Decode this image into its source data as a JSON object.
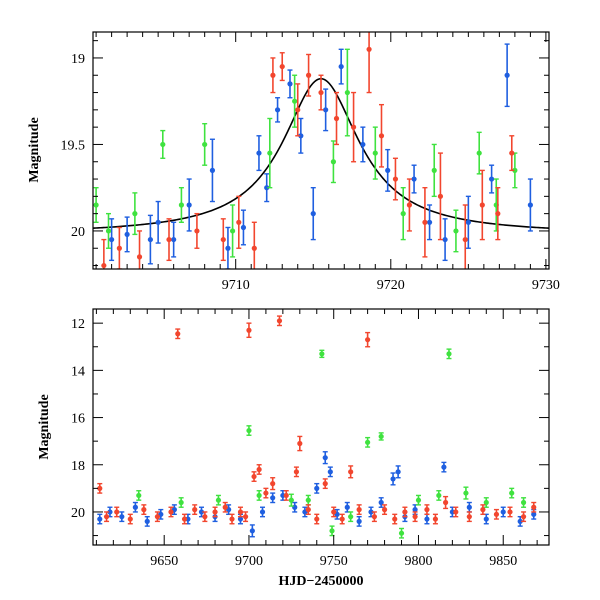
{
  "colors": {
    "blue": "#1f5fe0",
    "green": "#3fe23f",
    "red": "#f2462e",
    "fit": "#000000"
  },
  "chart_data": [
    {
      "type": "scatter",
      "title": "",
      "xlabel": "",
      "ylabel": "Magnitude",
      "xlim": [
        9700.8,
        9730.2
      ],
      "ylim": [
        20.22,
        18.85
      ],
      "y_inverted": true,
      "xticks": [
        9710,
        9720,
        9730
      ],
      "yticks": [
        19,
        19.5,
        20
      ],
      "ytick_labels": [
        "19",
        "19.5",
        "20"
      ],
      "fit_curve": {
        "model": "lorentzian",
        "t0": 9715.5,
        "baseline": 20.02,
        "peak": 19.12,
        "width": 3.0
      },
      "series": [
        {
          "name": "blue",
          "color": "blue",
          "points": [
            [
              9702,
              20.05,
              0.12
            ],
            [
              9703,
              20.02,
              0.1
            ],
            [
              9704.5,
              20.05,
              0.14
            ],
            [
              9705,
              19.95,
              0.12
            ],
            [
              9706,
              20.05,
              0.1
            ],
            [
              9707,
              19.85,
              0.15
            ],
            [
              9708.5,
              19.65,
              0.18
            ],
            [
              9709.5,
              20.1,
              0.12
            ],
            [
              9710.5,
              19.98,
              0.1
            ],
            [
              9711.5,
              19.55,
              0.1
            ],
            [
              9712,
              19.75,
              0.08
            ],
            [
              9712.7,
              19.3,
              0.07
            ],
            [
              9713.5,
              19.15,
              0.08
            ],
            [
              9714.2,
              19.45,
              0.1
            ],
            [
              9715,
              19.9,
              0.15
            ],
            [
              9715.8,
              19.3,
              0.12
            ],
            [
              9716.8,
              19.05,
              0.1
            ],
            [
              9718.2,
              19.5,
              0.1
            ],
            [
              9719.8,
              19.65,
              0.12
            ],
            [
              9721.5,
              19.7,
              0.08
            ],
            [
              9722.5,
              19.95,
              0.1
            ],
            [
              9723.5,
              20.05,
              0.12
            ],
            [
              9725,
              19.95,
              0.15
            ],
            [
              9726.5,
              19.7,
              0.08
            ],
            [
              9727.5,
              19.1,
              0.18
            ],
            [
              9729,
              19.85,
              0.15
            ]
          ]
        },
        {
          "name": "green",
          "color": "green",
          "points": [
            [
              9701,
              19.85,
              0.1
            ],
            [
              9701.8,
              20.0,
              0.1
            ],
            [
              9703.5,
              19.9,
              0.12
            ],
            [
              9705.3,
              19.5,
              0.08
            ],
            [
              9706.5,
              19.85,
              0.1
            ],
            [
              9708,
              19.5,
              0.12
            ],
            [
              9709.8,
              20.0,
              0.15
            ],
            [
              9712.2,
              19.55,
              0.2
            ],
            [
              9713.8,
              19.25,
              0.15
            ],
            [
              9716.3,
              19.6,
              0.12
            ],
            [
              9717.2,
              19.2,
              0.25
            ],
            [
              9719,
              19.55,
              0.15
            ],
            [
              9720.8,
              19.9,
              0.15
            ],
            [
              9722.8,
              19.65,
              0.15
            ],
            [
              9724.2,
              20.0,
              0.12
            ],
            [
              9725.7,
              19.55,
              0.12
            ],
            [
              9726.8,
              19.85,
              0.15
            ],
            [
              9728,
              19.65,
              0.1
            ]
          ]
        },
        {
          "name": "red",
          "color": "red",
          "points": [
            [
              9701.5,
              20.2,
              0.15
            ],
            [
              9702.5,
              20.1,
              0.12
            ],
            [
              9703.8,
              20.15,
              0.15
            ],
            [
              9705.7,
              20.05,
              0.12
            ],
            [
              9707.5,
              20.0,
              0.1
            ],
            [
              9709.2,
              20.05,
              0.12
            ],
            [
              9710.2,
              19.95,
              0.15
            ],
            [
              9711.2,
              20.1,
              0.15
            ],
            [
              9712.4,
              19.1,
              0.1
            ],
            [
              9713,
              19.05,
              0.08
            ],
            [
              9714,
              19.3,
              0.15
            ],
            [
              9714.7,
              19.1,
              0.12
            ],
            [
              9715.5,
              19.2,
              0.1
            ],
            [
              9716.5,
              19.35,
              0.15
            ],
            [
              9717.6,
              19.4,
              0.2
            ],
            [
              9718.6,
              18.95,
              0.25
            ],
            [
              9719.4,
              19.45,
              0.18
            ],
            [
              9720.3,
              19.7,
              0.12
            ],
            [
              9721.2,
              19.85,
              0.15
            ],
            [
              9722.2,
              19.95,
              0.2
            ],
            [
              9723.2,
              19.8,
              0.25
            ],
            [
              9724.8,
              20.05,
              0.2
            ],
            [
              9725.9,
              19.85,
              0.2
            ],
            [
              9726.9,
              19.9,
              0.15
            ],
            [
              9727.8,
              19.55,
              0.1
            ]
          ]
        }
      ]
    },
    {
      "type": "scatter",
      "title": "",
      "xlabel": "HJD−2450000",
      "ylabel": "Magnitude",
      "xlim": [
        9608,
        9877
      ],
      "ylim": [
        21.4,
        11.4
      ],
      "y_inverted": true,
      "xticks": [
        9650,
        9700,
        9750,
        9800,
        9850
      ],
      "yticks": [
        12,
        14,
        16,
        18,
        20
      ],
      "ytick_labels": [
        "12",
        "14",
        "16",
        "18",
        "20"
      ],
      "series": [
        {
          "name": "blue",
          "color": "blue",
          "points": [
            [
              9612,
              20.3,
              0.2
            ],
            [
              9618,
              20.0,
              0.2
            ],
            [
              9625,
              20.2,
              0.2
            ],
            [
              9633,
              19.8,
              0.2
            ],
            [
              9640,
              20.4,
              0.2
            ],
            [
              9648,
              20.1,
              0.2
            ],
            [
              9656,
              19.9,
              0.2
            ],
            [
              9664,
              20.3,
              0.2
            ],
            [
              9672,
              20.0,
              0.2
            ],
            [
              9680,
              20.2,
              0.2
            ],
            [
              9688,
              19.9,
              0.2
            ],
            [
              9695,
              20.3,
              0.2
            ],
            [
              9702,
              20.8,
              0.25
            ],
            [
              9708,
              20.0,
              0.2
            ],
            [
              9714,
              19.4,
              0.2
            ],
            [
              9720,
              19.3,
              0.2
            ],
            [
              9727,
              19.8,
              0.2
            ],
            [
              9733,
              20.0,
              0.2
            ],
            [
              9740,
              19.0,
              0.2
            ],
            [
              9745,
              17.7,
              0.25
            ],
            [
              9748,
              18.3,
              0.2
            ],
            [
              9752,
              20.1,
              0.2
            ],
            [
              9758,
              19.8,
              0.2
            ],
            [
              9765,
              20.4,
              0.2
            ],
            [
              9772,
              20.0,
              0.2
            ],
            [
              9778,
              19.6,
              0.2
            ],
            [
              9785,
              18.6,
              0.25
            ],
            [
              9788,
              18.3,
              0.25
            ],
            [
              9792,
              20.2,
              0.2
            ],
            [
              9798,
              19.9,
              0.2
            ],
            [
              9805,
              20.3,
              0.2
            ],
            [
              9815,
              18.1,
              0.2
            ],
            [
              9820,
              20.0,
              0.2
            ],
            [
              9830,
              19.8,
              0.2
            ],
            [
              9840,
              20.3,
              0.2
            ],
            [
              9850,
              20.0,
              0.2
            ],
            [
              9860,
              20.4,
              0.2
            ],
            [
              9868,
              20.1,
              0.2
            ]
          ]
        },
        {
          "name": "green",
          "color": "green",
          "points": [
            [
              9635,
              19.3,
              0.2
            ],
            [
              9660,
              19.6,
              0.2
            ],
            [
              9682,
              19.5,
              0.2
            ],
            [
              9700,
              16.55,
              0.2
            ],
            [
              9706,
              19.3,
              0.2
            ],
            [
              9725,
              19.5,
              0.25
            ],
            [
              9735,
              19.5,
              0.2
            ],
            [
              9743,
              13.3,
              0.15
            ],
            [
              9749,
              20.8,
              0.2
            ],
            [
              9760,
              20.2,
              0.2
            ],
            [
              9770,
              17.05,
              0.2
            ],
            [
              9778,
              16.8,
              0.15
            ],
            [
              9790,
              20.9,
              0.2
            ],
            [
              9800,
              19.5,
              0.2
            ],
            [
              9812,
              19.3,
              0.2
            ],
            [
              9818,
              13.3,
              0.2
            ],
            [
              9828,
              19.2,
              0.25
            ],
            [
              9840,
              19.6,
              0.2
            ],
            [
              9855,
              19.2,
              0.2
            ],
            [
              9862,
              19.6,
              0.2
            ]
          ]
        },
        {
          "name": "red",
          "color": "red",
          "points": [
            [
              9612,
              19.0,
              0.2
            ],
            [
              9616,
              20.2,
              0.2
            ],
            [
              9622,
              20.0,
              0.2
            ],
            [
              9630,
              20.3,
              0.2
            ],
            [
              9638,
              19.9,
              0.2
            ],
            [
              9646,
              20.2,
              0.2
            ],
            [
              9654,
              20.0,
              0.2
            ],
            [
              9658,
              12.45,
              0.2
            ],
            [
              9662,
              20.3,
              0.2
            ],
            [
              9668,
              19.9,
              0.2
            ],
            [
              9674,
              20.2,
              0.2
            ],
            [
              9680,
              20.0,
              0.2
            ],
            [
              9686,
              19.8,
              0.2
            ],
            [
              9690,
              20.3,
              0.2
            ],
            [
              9695,
              20.0,
              0.2
            ],
            [
              9698,
              20.2,
              0.2
            ],
            [
              9700,
              12.3,
              0.3
            ],
            [
              9703,
              18.5,
              0.2
            ],
            [
              9706,
              18.2,
              0.2
            ],
            [
              9710,
              19.2,
              0.2
            ],
            [
              9714,
              18.8,
              0.25
            ],
            [
              9718,
              11.9,
              0.2
            ],
            [
              9722,
              19.3,
              0.2
            ],
            [
              9728,
              18.3,
              0.2
            ],
            [
              9730,
              17.1,
              0.3
            ],
            [
              9735,
              19.9,
              0.2
            ],
            [
              9740,
              20.3,
              0.2
            ],
            [
              9745,
              18.8,
              0.2
            ],
            [
              9750,
              20.0,
              0.2
            ],
            [
              9755,
              20.3,
              0.2
            ],
            [
              9760,
              18.3,
              0.25
            ],
            [
              9765,
              19.9,
              0.2
            ],
            [
              9770,
              12.7,
              0.3
            ],
            [
              9774,
              20.2,
              0.2
            ],
            [
              9780,
              19.9,
              0.2
            ],
            [
              9786,
              20.3,
              0.2
            ],
            [
              9792,
              20.0,
              0.2
            ],
            [
              9798,
              20.2,
              0.2
            ],
            [
              9805,
              19.9,
              0.2
            ],
            [
              9810,
              20.3,
              0.2
            ],
            [
              9816,
              19.6,
              0.25
            ],
            [
              9822,
              20.0,
              0.2
            ],
            [
              9830,
              20.2,
              0.2
            ],
            [
              9838,
              19.9,
              0.2
            ],
            [
              9846,
              20.1,
              0.2
            ],
            [
              9854,
              20.0,
              0.2
            ],
            [
              9862,
              20.2,
              0.2
            ],
            [
              9868,
              19.8,
              0.2
            ]
          ]
        }
      ]
    }
  ]
}
